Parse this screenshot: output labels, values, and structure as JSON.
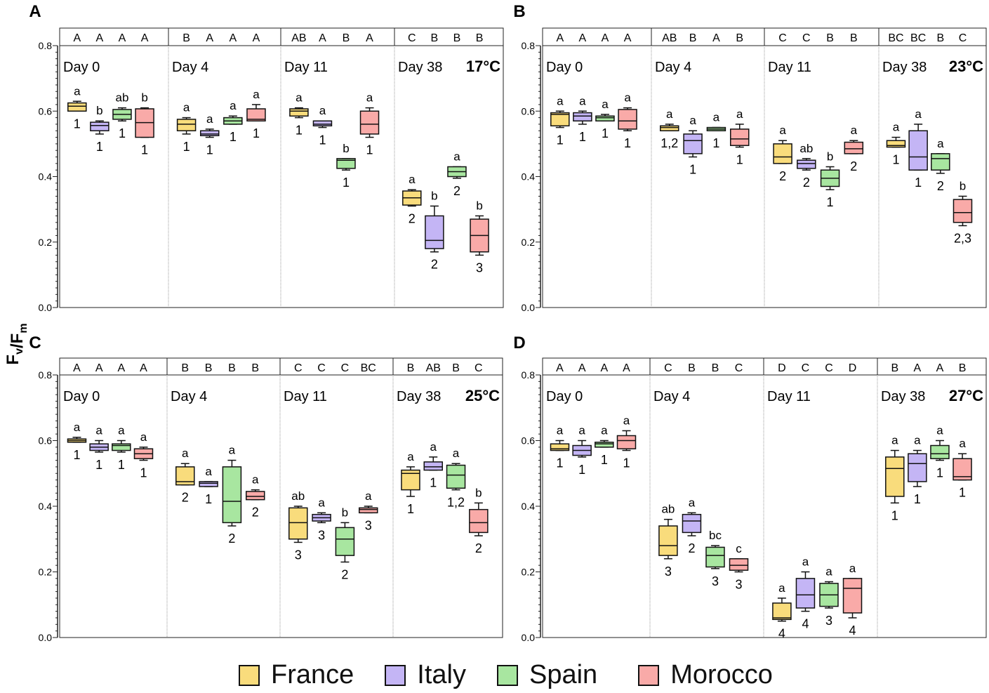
{
  "chart_data": {
    "type": "box",
    "ylabel": "Fv/Fm",
    "ylim": [
      0,
      0.8
    ],
    "yticks": [
      "0.0",
      "0.2",
      "0.4",
      "0.6",
      "0.8"
    ],
    "series": [
      {
        "name": "France",
        "color": "#f9dc7c"
      },
      {
        "name": "Italy",
        "color": "#c4b5f5"
      },
      {
        "name": "Spain",
        "color": "#a8e6a0"
      },
      {
        "name": "Morocco",
        "color": "#f9aaa8"
      }
    ],
    "box_format": [
      "min",
      "q1",
      "median",
      "q3",
      "max"
    ],
    "panels": [
      {
        "label": "A",
        "temperature": "17°C",
        "days": [
          {
            "day": "Day 0",
            "group_letters": [
              "A",
              "A",
              "A",
              "A"
            ],
            "box_letters": [
              "a",
              "b",
              "ab",
              "b"
            ],
            "box_numbers": [
              "1",
              "1",
              "1",
              "1"
            ],
            "boxes": [
              [
                0.6,
                0.6,
                0.615,
                0.625,
                0.63
              ],
              [
                0.53,
                0.54,
                0.556,
                0.566,
                0.57
              ],
              [
                0.57,
                0.575,
                0.59,
                0.605,
                0.61
              ],
              [
                0.52,
                0.52,
                0.565,
                0.607,
                0.61
              ]
            ]
          },
          {
            "day": "Day 4",
            "group_letters": [
              "B",
              "A",
              "A",
              "A"
            ],
            "box_letters": [
              "a",
              "a",
              "a",
              "a"
            ],
            "box_numbers": [
              "1",
              "1",
              "1",
              "1"
            ],
            "boxes": [
              [
                0.53,
                0.54,
                0.56,
                0.575,
                0.58
              ],
              [
                0.52,
                0.525,
                0.53,
                0.54,
                0.545
              ],
              [
                0.56,
                0.56,
                0.57,
                0.58,
                0.585
              ],
              [
                0.57,
                0.57,
                0.575,
                0.607,
                0.62
              ]
            ]
          },
          {
            "day": "Day 11",
            "group_letters": [
              "AB",
              "A",
              "B",
              "A"
            ],
            "box_letters": [
              "a",
              "a",
              "b",
              "a"
            ],
            "box_numbers": [
              "1",
              "1",
              "1",
              "1"
            ],
            "boxes": [
              [
                0.58,
                0.585,
                0.6,
                0.607,
                0.61
              ],
              [
                0.55,
                0.555,
                0.56,
                0.57,
                0.57
              ],
              [
                0.42,
                0.425,
                0.45,
                0.455,
                0.455
              ],
              [
                0.52,
                0.53,
                0.56,
                0.6,
                0.61
              ]
            ]
          },
          {
            "day": "Day 38",
            "group_letters": [
              "C",
              "B",
              "B",
              "B"
            ],
            "box_letters": [
              "a",
              "b",
              "a",
              "b"
            ],
            "box_numbers": [
              "2",
              "2",
              "2",
              "3"
            ],
            "boxes": [
              [
                0.31,
                0.313,
                0.335,
                0.356,
                0.36
              ],
              [
                0.17,
                0.18,
                0.205,
                0.28,
                0.31
              ],
              [
                0.395,
                0.4,
                0.415,
                0.43,
                0.43
              ],
              [
                0.16,
                0.17,
                0.22,
                0.27,
                0.28
              ]
            ]
          }
        ]
      },
      {
        "label": "B",
        "temperature": "23°C",
        "days": [
          {
            "day": "Day 0",
            "group_letters": [
              "A",
              "A",
              "A",
              "A"
            ],
            "box_letters": [
              "a",
              "a",
              "a",
              "a"
            ],
            "box_numbers": [
              "1",
              "1",
              "1",
              "1"
            ],
            "boxes": [
              [
                0.55,
                0.555,
                0.59,
                0.595,
                0.6
              ],
              [
                0.56,
                0.57,
                0.585,
                0.595,
                0.6
              ],
              [
                0.57,
                0.57,
                0.58,
                0.585,
                0.59
              ],
              [
                0.54,
                0.545,
                0.57,
                0.605,
                0.61
              ]
            ]
          },
          {
            "day": "Day 4",
            "group_letters": [
              "AB",
              "B",
              "A",
              "B"
            ],
            "box_letters": [
              "a",
              "a",
              "a",
              "a"
            ],
            "box_numbers": [
              "1,2",
              "1",
              "1",
              "1"
            ],
            "boxes": [
              [
                0.54,
                0.54,
                0.55,
                0.555,
                0.56
              ],
              [
                0.46,
                0.47,
                0.51,
                0.53,
                0.54
              ],
              [
                0.54,
                0.54,
                0.545,
                0.55,
                0.55
              ],
              [
                0.49,
                0.495,
                0.515,
                0.545,
                0.56
              ]
            ]
          },
          {
            "day": "Day 11",
            "group_letters": [
              "C",
              "C",
              "B",
              "B"
            ],
            "box_letters": [
              "a",
              "ab",
              "b",
              "a"
            ],
            "box_numbers": [
              "2",
              "2",
              "1",
              "2"
            ],
            "boxes": [
              [
                0.44,
                0.44,
                0.46,
                0.5,
                0.51
              ],
              [
                0.42,
                0.425,
                0.44,
                0.45,
                0.455
              ],
              [
                0.36,
                0.37,
                0.395,
                0.42,
                0.43
              ],
              [
                0.47,
                0.47,
                0.485,
                0.505,
                0.51
              ]
            ]
          },
          {
            "day": "Day 38",
            "group_letters": [
              "BC",
              "BC",
              "B",
              "C"
            ],
            "box_letters": [
              "a",
              "a",
              "a",
              "b"
            ],
            "box_numbers": [
              "1",
              "1",
              "2",
              "2,3"
            ],
            "boxes": [
              [
                0.49,
                0.49,
                0.495,
                0.51,
                0.52
              ],
              [
                0.42,
                0.42,
                0.46,
                0.54,
                0.56
              ],
              [
                0.41,
                0.42,
                0.455,
                0.47,
                0.47
              ],
              [
                0.25,
                0.26,
                0.29,
                0.33,
                0.34
              ]
            ]
          }
        ]
      },
      {
        "label": "C",
        "temperature": "25°C",
        "days": [
          {
            "day": "Day 0",
            "group_letters": [
              "A",
              "A",
              "A",
              "A"
            ],
            "box_letters": [
              "a",
              "a",
              "a",
              "a"
            ],
            "box_numbers": [
              "1",
              "1",
              "1",
              "1"
            ],
            "boxes": [
              [
                0.595,
                0.595,
                0.6,
                0.605,
                0.61
              ],
              [
                0.565,
                0.57,
                0.58,
                0.59,
                0.6
              ],
              [
                0.565,
                0.57,
                0.585,
                0.59,
                0.6
              ],
              [
                0.54,
                0.545,
                0.56,
                0.575,
                0.58
              ]
            ]
          },
          {
            "day": "Day 4",
            "group_letters": [
              "B",
              "B",
              "B",
              "B"
            ],
            "box_letters": [
              "a",
              "a",
              "a",
              "a"
            ],
            "box_numbers": [
              "2",
              "1",
              "2",
              "2"
            ],
            "boxes": [
              [
                0.465,
                0.465,
                0.475,
                0.52,
                0.53
              ],
              [
                0.46,
                0.46,
                0.47,
                0.475,
                0.475
              ],
              [
                0.34,
                0.35,
                0.415,
                0.52,
                0.54
              ],
              [
                0.42,
                0.42,
                0.43,
                0.445,
                0.45
              ]
            ]
          },
          {
            "day": "Day 11",
            "group_letters": [
              "C",
              "C",
              "C",
              "BC"
            ],
            "box_letters": [
              "ab",
              "a",
              "b",
              "a"
            ],
            "box_numbers": [
              "3",
              "3",
              "2",
              "3"
            ],
            "boxes": [
              [
                0.29,
                0.3,
                0.35,
                0.395,
                0.4
              ],
              [
                0.35,
                0.355,
                0.365,
                0.375,
                0.38
              ],
              [
                0.23,
                0.25,
                0.3,
                0.335,
                0.35
              ],
              [
                0.38,
                0.38,
                0.39,
                0.395,
                0.4
              ]
            ]
          },
          {
            "day": "Day 38",
            "group_letters": [
              "B",
              "AB",
              "B",
              "C"
            ],
            "box_letters": [
              "a",
              "a",
              "a",
              "b"
            ],
            "box_numbers": [
              "1",
              "1",
              "1,2",
              "2"
            ],
            "boxes": [
              [
                0.43,
                0.45,
                0.5,
                0.51,
                0.52
              ],
              [
                0.51,
                0.51,
                0.52,
                0.535,
                0.55
              ],
              [
                0.45,
                0.455,
                0.495,
                0.525,
                0.53
              ],
              [
                0.31,
                0.32,
                0.35,
                0.39,
                0.41
              ]
            ]
          }
        ]
      },
      {
        "label": "D",
        "temperature": "27°C",
        "days": [
          {
            "day": "Day 0",
            "group_letters": [
              "A",
              "A",
              "A",
              "A"
            ],
            "box_letters": [
              "a",
              "a",
              "a",
              "a"
            ],
            "box_numbers": [
              "1",
              "1",
              "1",
              "1"
            ],
            "boxes": [
              [
                0.57,
                0.57,
                0.575,
                0.59,
                0.6
              ],
              [
                0.55,
                0.555,
                0.57,
                0.585,
                0.6
              ],
              [
                0.58,
                0.58,
                0.59,
                0.595,
                0.6
              ],
              [
                0.57,
                0.575,
                0.6,
                0.615,
                0.63
              ]
            ]
          },
          {
            "day": "Day 4",
            "group_letters": [
              "C",
              "B",
              "B",
              "C"
            ],
            "box_letters": [
              "ab",
              "a",
              "bc",
              "c"
            ],
            "box_numbers": [
              "3",
              "2",
              "3",
              "3"
            ],
            "boxes": [
              [
                0.24,
                0.25,
                0.28,
                0.34,
                0.36
              ],
              [
                0.31,
                0.32,
                0.355,
                0.375,
                0.38
              ],
              [
                0.21,
                0.215,
                0.25,
                0.275,
                0.28
              ],
              [
                0.2,
                0.205,
                0.22,
                0.24,
                0.24
              ]
            ]
          },
          {
            "day": "Day 11",
            "group_letters": [
              "D",
              "C",
              "C",
              "D"
            ],
            "box_letters": [
              "a",
              "a",
              "a",
              "a"
            ],
            "box_numbers": [
              "4",
              "4",
              "3",
              "4"
            ],
            "boxes": [
              [
                0.05,
                0.055,
                0.06,
                0.105,
                0.12
              ],
              [
                0.08,
                0.09,
                0.13,
                0.18,
                0.2
              ],
              [
                0.09,
                0.095,
                0.13,
                0.165,
                0.17
              ],
              [
                0.06,
                0.075,
                0.15,
                0.18,
                0.18
              ]
            ]
          },
          {
            "day": "Day 38",
            "group_letters": [
              "B",
              "A",
              "A",
              "B"
            ],
            "box_letters": [
              "a",
              "a",
              "a",
              "a"
            ],
            "box_numbers": [
              "1",
              "1",
              "1",
              "1"
            ],
            "boxes": [
              [
                0.41,
                0.43,
                0.515,
                0.55,
                0.57
              ],
              [
                0.46,
                0.475,
                0.53,
                0.56,
                0.57
              ],
              [
                0.54,
                0.545,
                0.56,
                0.585,
                0.6
              ],
              [
                0.48,
                0.48,
                0.49,
                0.545,
                0.56
              ]
            ]
          }
        ]
      }
    ]
  }
}
